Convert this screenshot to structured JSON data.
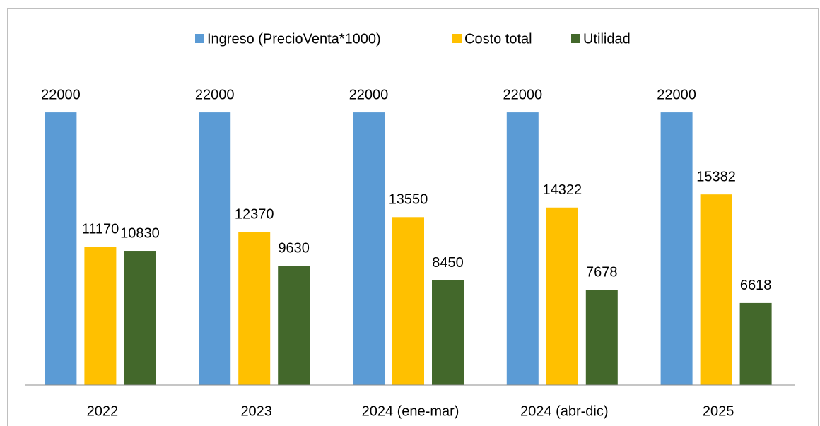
{
  "chart_data": {
    "type": "bar",
    "categories": [
      "2022",
      "2023",
      "2024 (ene-mar)",
      "2024 (abr-dic)",
      "2025"
    ],
    "series": [
      {
        "name": "Ingreso (PrecioVenta*1000)",
        "color": "#5b9bd5",
        "values": [
          22000,
          22000,
          22000,
          22000,
          22000
        ]
      },
      {
        "name": "Costo total",
        "color": "#ffc000",
        "values": [
          11170,
          12370,
          13550,
          14322,
          15382
        ]
      },
      {
        "name": "Utilidad",
        "color": "#43682b",
        "values": [
          10830,
          9630,
          8450,
          7678,
          6618
        ]
      }
    ],
    "ylim": [
      0,
      24000
    ],
    "grid": false,
    "legend": "top"
  }
}
